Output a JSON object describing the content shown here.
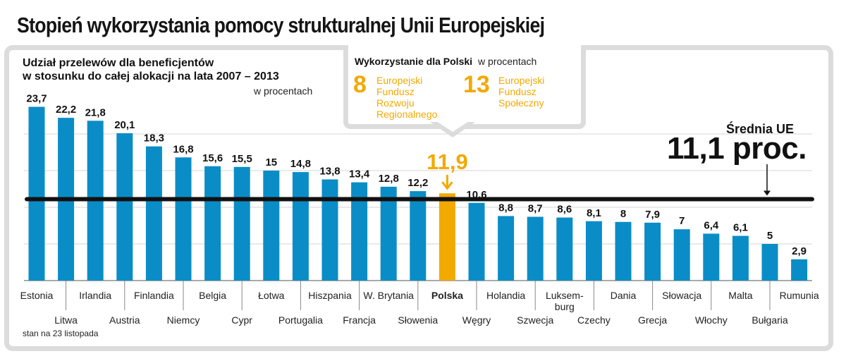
{
  "title": "Stopień wykorzystania pomocy strukturalnej Unii Europejskiej",
  "subtitle_line1": "Udział przelewów dla beneficjentów",
  "subtitle_line2": "w stosunku do całej alokacji na lata 2007 – 2013",
  "unit": "w procentach",
  "callout": {
    "heading": "Wykorzystanie dla Polski",
    "unit": "w procentach",
    "items": [
      {
        "value": "8",
        "line1": "Europejski",
        "line2": "Fundusz",
        "line3": "Rozwoju",
        "line4": "Regionalnego"
      },
      {
        "value": "13",
        "line1": "Europejski",
        "line2": "Fundusz",
        "line3": "Społeczny"
      }
    ]
  },
  "average": {
    "label": "Średnia UE",
    "value_text": "11,1 proc.",
    "value": 11.1
  },
  "note": "stan na 23 listopada",
  "colors": {
    "bar": "#0a8dc7",
    "highlight": "#f2a900",
    "avg_line": "#111111",
    "frame": "#dcdcdc"
  },
  "chart_data": {
    "type": "bar",
    "title": "Stopień wykorzystania pomocy strukturalnej Unii Europejskiej",
    "xlabel": "",
    "ylabel": "w procentach",
    "ylim": [
      0,
      25
    ],
    "highlight_category": "Polska",
    "reference_line": {
      "label": "Średnia UE",
      "value": 11.1
    },
    "categories": [
      "Estonia",
      "Litwa",
      "Irlandia",
      "Austria",
      "Finlandia",
      "Niemcy",
      "Belgia",
      "Cypr",
      "Łotwa",
      "Portugalia",
      "Hiszpania",
      "Francja",
      "W. Brytania",
      "Słowenia",
      "Polska",
      "Węgry",
      "Holandia",
      "Szwecja",
      "Luksem-burg",
      "Czechy",
      "Dania",
      "Grecja",
      "Słowacja",
      "Włochy",
      "Malta",
      "Bułgaria",
      "Rumunia"
    ],
    "values": [
      23.7,
      22.2,
      21.8,
      20.1,
      18.3,
      16.8,
      15.6,
      15.5,
      15,
      14.8,
      13.8,
      13.4,
      12.8,
      12.2,
      11.9,
      10.6,
      8.8,
      8.7,
      8.6,
      8.1,
      8,
      7.9,
      7,
      6.4,
      6.1,
      5,
      2.9
    ],
    "value_labels": [
      "23,7",
      "22,2",
      "21,8",
      "20,1",
      "18,3",
      "16,8",
      "15,6",
      "15,5",
      "15",
      "14,8",
      "13,8",
      "13,4",
      "12,8",
      "12,2",
      "11,9",
      "10,6",
      "8,8",
      "8,7",
      "8,6",
      "8,1",
      "8",
      "7,9",
      "7",
      "6,4",
      "6,1",
      "5",
      "2,9"
    ]
  }
}
